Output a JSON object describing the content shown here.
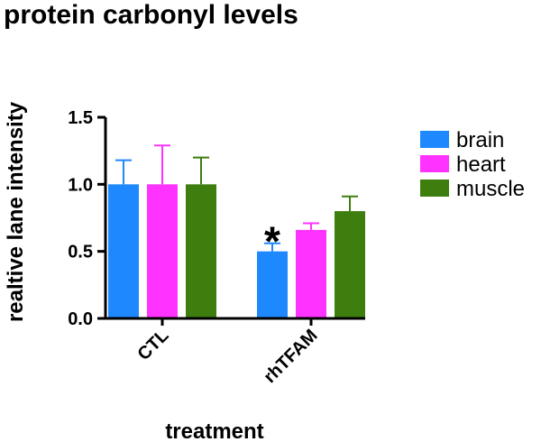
{
  "chart_data": {
    "type": "bar",
    "title": "protein carbonyl levels",
    "xlabel": "treatment",
    "ylabel": "realtive lane intensity",
    "categories": [
      "CTL",
      "rhTFAM"
    ],
    "series": [
      {
        "name": "brain",
        "color": "#1e88ff",
        "values": [
          1.0,
          0.5
        ],
        "errors": [
          0.18,
          0.06
        ]
      },
      {
        "name": "heart",
        "color": "#ff33ff",
        "values": [
          1.0,
          0.66
        ],
        "errors": [
          0.29,
          0.05
        ]
      },
      {
        "name": "muscle",
        "color": "#3e7e0e",
        "values": [
          1.0,
          0.8
        ],
        "errors": [
          0.2,
          0.11
        ]
      }
    ],
    "ylim": [
      0,
      1.5
    ],
    "yticks": [
      "0.0",
      "0.5",
      "1.0",
      "1.5"
    ],
    "grid": false,
    "legend": "right",
    "annotations": [
      {
        "text": "*",
        "category": "rhTFAM",
        "series": "brain"
      }
    ]
  }
}
